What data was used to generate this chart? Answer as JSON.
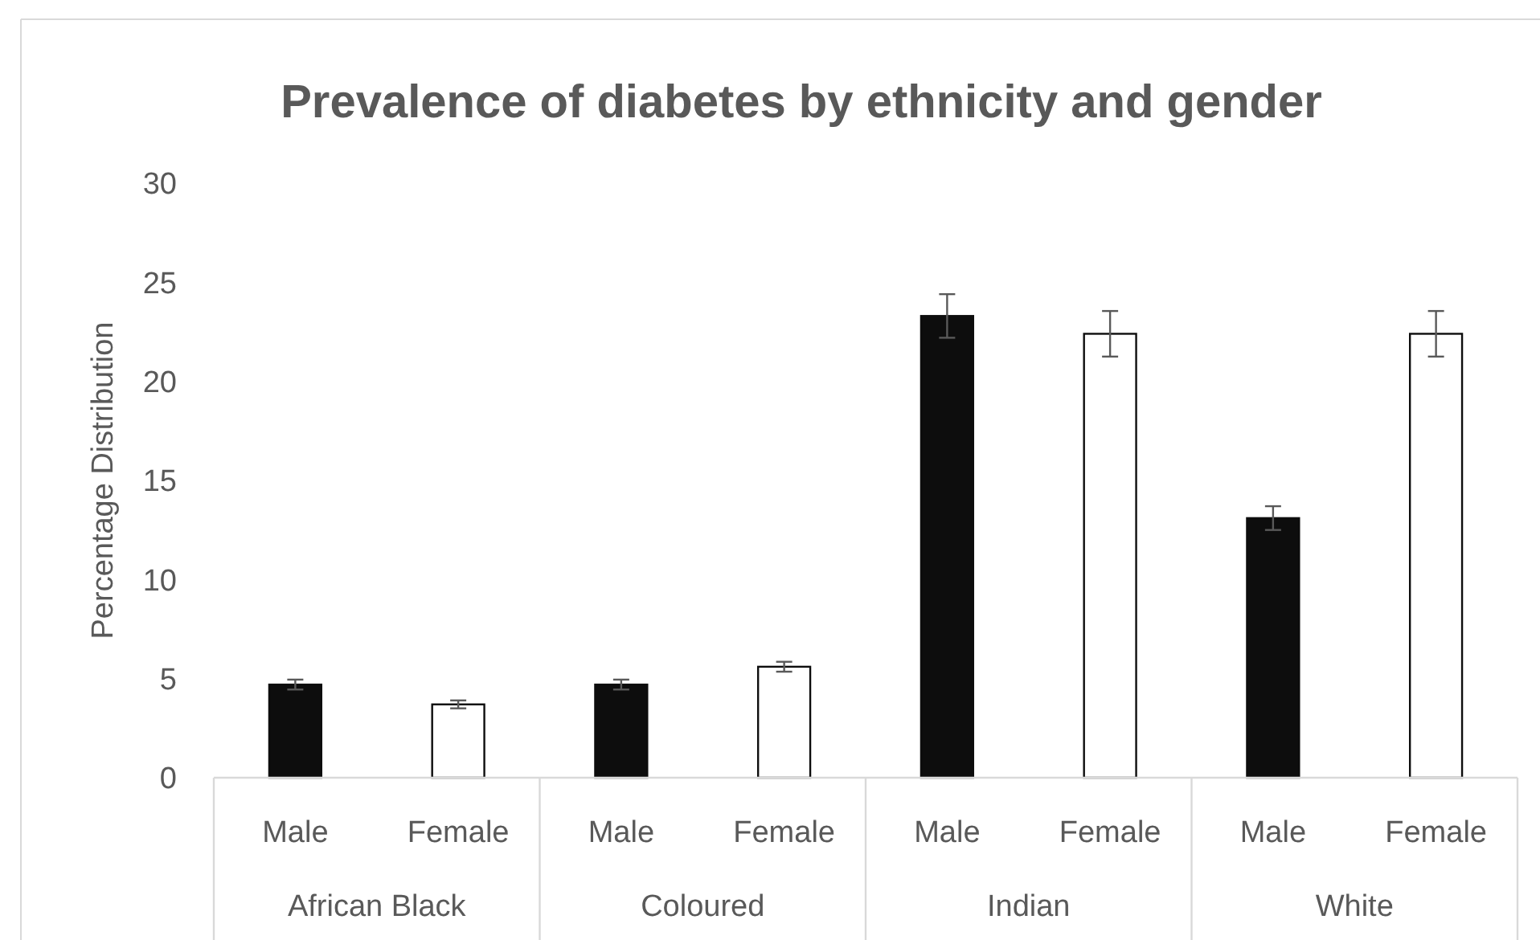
{
  "chart_data": {
    "type": "bar",
    "title": "Prevalence of diabetes by ethnicity and gender",
    "ylabel": "Percentage Distribution",
    "categories": [
      "Male",
      "Female",
      "Male",
      "Female",
      "Male",
      "Female",
      "Male",
      "Female"
    ],
    "values": [
      4.7,
      3.7,
      4.7,
      5.6,
      23.3,
      22.4,
      13.1,
      22.4
    ],
    "colors": [
      "#0d0d0d",
      "#ffffff",
      "#0d0d0d",
      "#ffffff",
      "#0d0d0d",
      "#ffffff",
      "#0d0d0d",
      "#ffffff"
    ],
    "errors": [
      0.25,
      0.2,
      0.25,
      0.25,
      1.1,
      1.15,
      0.6,
      1.15
    ],
    "annotations": [
      "African Black",
      "Coloured",
      "Indian",
      "White"
    ],
    "ylim": [
      0,
      30
    ],
    "yticks": [
      0,
      5,
      10,
      15,
      20,
      25,
      30
    ]
  }
}
